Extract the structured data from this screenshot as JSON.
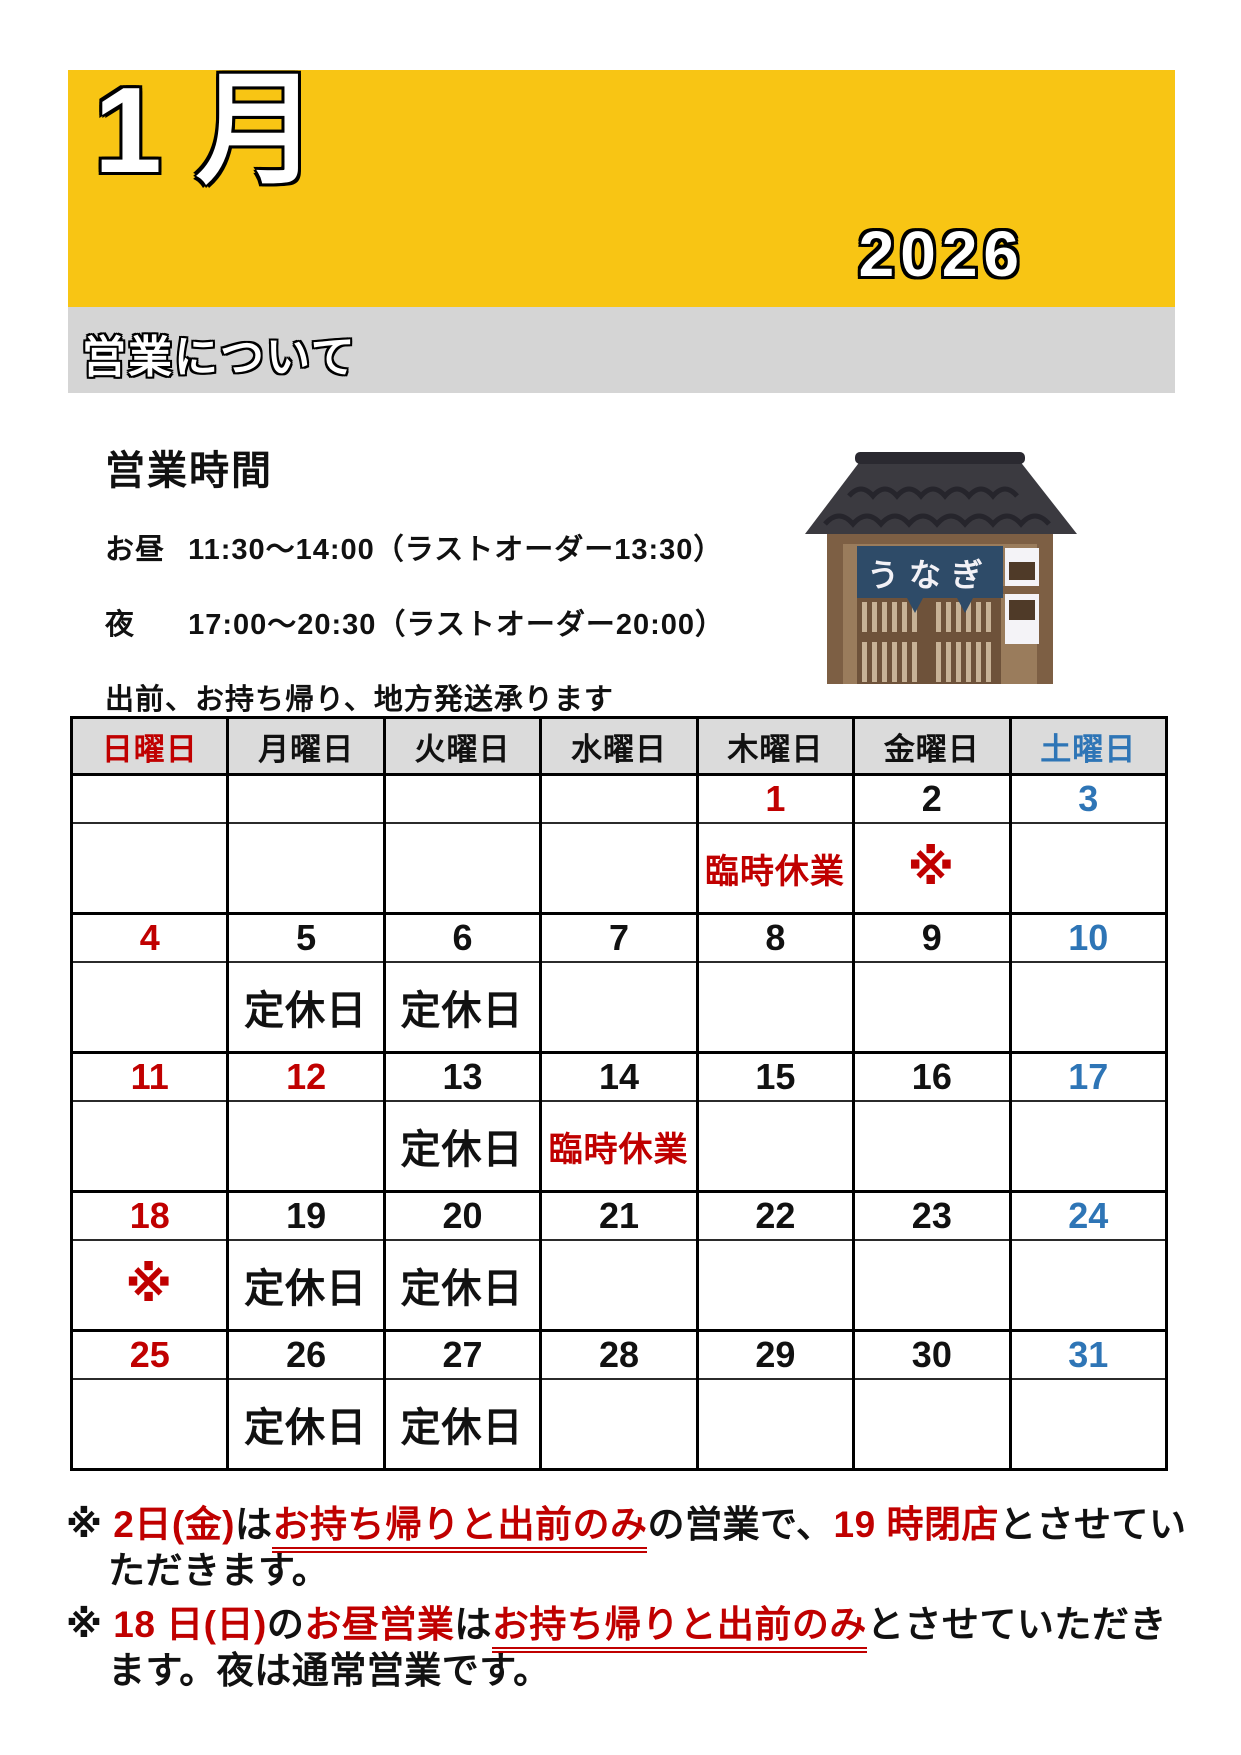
{
  "banner": {
    "month": "1月",
    "year": "2026",
    "section_label": "営業について"
  },
  "hours": {
    "title": "営業時間",
    "lunch": {
      "label": "お昼",
      "time": "11:30～14:00（ラストオーダー13:30）"
    },
    "dinner": {
      "label": "夜",
      "time": "17:00～20:30（ラストオーダー20:00）"
    },
    "delivery": "出前、お持ち帰り、地方発送承ります"
  },
  "shop": {
    "sign": "うなぎ"
  },
  "calendar": {
    "day_headers": [
      {
        "label": "日曜日",
        "color": "red"
      },
      {
        "label": "月曜日",
        "color": "black"
      },
      {
        "label": "火曜日",
        "color": "black"
      },
      {
        "label": "水曜日",
        "color": "black"
      },
      {
        "label": "木曜日",
        "color": "black"
      },
      {
        "label": "金曜日",
        "color": "black"
      },
      {
        "label": "土曜日",
        "color": "blue"
      }
    ],
    "weeks": [
      {
        "dates": [
          "",
          "",
          "",
          "",
          "1",
          "2",
          "3"
        ],
        "date_colors": [
          "",
          "",
          "",
          "",
          "red",
          "black",
          "blue"
        ],
        "notes": [
          "",
          "",
          "",
          "",
          "臨時休業",
          "※",
          ""
        ],
        "note_colors": [
          "",
          "",
          "",
          "",
          "red",
          "red",
          ""
        ]
      },
      {
        "dates": [
          "4",
          "5",
          "6",
          "7",
          "8",
          "9",
          "10"
        ],
        "date_colors": [
          "red",
          "black",
          "black",
          "black",
          "black",
          "black",
          "blue"
        ],
        "notes": [
          "",
          "定休日",
          "定休日",
          "",
          "",
          "",
          ""
        ],
        "note_colors": [
          "",
          "black",
          "black",
          "",
          "",
          "",
          ""
        ]
      },
      {
        "dates": [
          "11",
          "12",
          "13",
          "14",
          "15",
          "16",
          "17"
        ],
        "date_colors": [
          "red",
          "red",
          "black",
          "black",
          "black",
          "black",
          "blue"
        ],
        "notes": [
          "",
          "",
          "定休日",
          "臨時休業",
          "",
          "",
          ""
        ],
        "note_colors": [
          "",
          "",
          "black",
          "red",
          "",
          "",
          ""
        ]
      },
      {
        "dates": [
          "18",
          "19",
          "20",
          "21",
          "22",
          "23",
          "24"
        ],
        "date_colors": [
          "red",
          "black",
          "black",
          "black",
          "black",
          "black",
          "blue"
        ],
        "notes": [
          "※",
          "定休日",
          "定休日",
          "",
          "",
          "",
          ""
        ],
        "note_colors": [
          "red",
          "black",
          "black",
          "",
          "",
          "",
          ""
        ]
      },
      {
        "dates": [
          "25",
          "26",
          "27",
          "28",
          "29",
          "30",
          "31"
        ],
        "date_colors": [
          "red",
          "black",
          "black",
          "black",
          "black",
          "black",
          "blue"
        ],
        "notes": [
          "",
          "定休日",
          "定休日",
          "",
          "",
          "",
          ""
        ],
        "note_colors": [
          "",
          "black",
          "black",
          "",
          "",
          "",
          ""
        ]
      }
    ]
  },
  "notes": [
    {
      "segments": [
        {
          "text": "※ ",
          "color": "black"
        },
        {
          "text": "2日(金)",
          "color": "red"
        },
        {
          "text": "は",
          "color": "black"
        },
        {
          "text": "お持ち帰りと出前のみ",
          "color": "red",
          "underline": true
        },
        {
          "text": "の営業で、",
          "color": "black"
        },
        {
          "text": "19 時閉店",
          "color": "red"
        },
        {
          "text": "とさせていただきます。",
          "color": "black"
        }
      ]
    },
    {
      "segments": [
        {
          "text": "※ ",
          "color": "black"
        },
        {
          "text": "18 日(日)",
          "color": "red"
        },
        {
          "text": "の",
          "color": "black"
        },
        {
          "text": "お昼営業",
          "color": "red"
        },
        {
          "text": "は",
          "color": "black"
        },
        {
          "text": "お持ち帰りと出前のみ",
          "color": "red",
          "underline": true
        },
        {
          "text": "とさせていただきます。夜は通常営業です。",
          "color": "black"
        }
      ]
    }
  ],
  "colors": {
    "banner_yellow": "#F8C514",
    "section_bar_gray": "#D5D5D5",
    "calendar_header_gray": "#DBDBDB",
    "holiday_red": "#C00000",
    "saturday_blue": "#2E75B6",
    "noren_navy": "#2E4B68"
  }
}
